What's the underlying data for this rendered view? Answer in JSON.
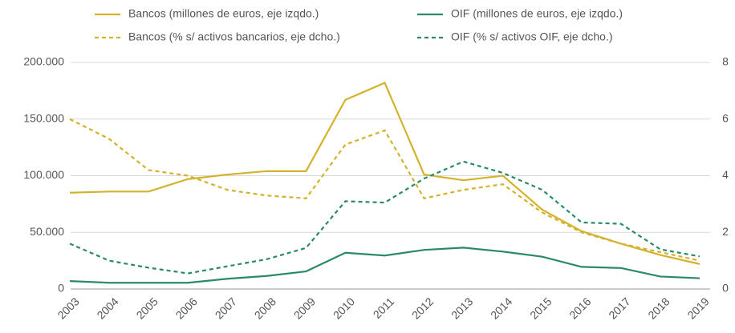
{
  "chart_data": {
    "type": "line",
    "categories": [
      "2003",
      "2004",
      "2005",
      "2006",
      "2007",
      "2008",
      "2009",
      "2010",
      "2011",
      "2012",
      "2013",
      "2014",
      "2015",
      "2016",
      "2017",
      "2018",
      "2019"
    ],
    "series": [
      {
        "name": "Bancos (millones de euros, eje izqdo.)",
        "color": "#d4b22c",
        "dashed": false,
        "values": [
          85000,
          86000,
          86000,
          97000,
          101000,
          104000,
          104000,
          167000,
          182000,
          101000,
          96000,
          100000,
          70000,
          51000,
          40000,
          30000,
          22000
        ]
      },
      {
        "name": "OIF (millones de euros, eje izqdo.)",
        "color": "#2a8a66",
        "dashed": false,
        "values": [
          7000,
          5500,
          5500,
          5500,
          9000,
          11500,
          15500,
          32000,
          29500,
          34500,
          36500,
          33000,
          28500,
          19500,
          18500,
          11000,
          9500
        ]
      },
      {
        "name": "Bancos (% s/ activos bancarios, eje dcho.)",
        "color": "#d4b22c",
        "dashed": true,
        "axis": "y2",
        "values": [
          6.0,
          5.3,
          4.2,
          4.0,
          3.5,
          3.3,
          3.2,
          5.1,
          5.6,
          3.2,
          3.5,
          3.7,
          2.7,
          2.0,
          1.6,
          1.3,
          1.0
        ]
      },
      {
        "name": "OIF (% s/ activos OIF, eje dcho.)",
        "color": "#2a8a66",
        "dashed": true,
        "axis": "y2",
        "values": [
          1.6,
          1.0,
          0.75,
          0.55,
          0.8,
          1.05,
          1.45,
          3.1,
          3.05,
          3.9,
          4.5,
          4.1,
          3.5,
          2.35,
          2.3,
          1.4,
          1.15
        ]
      }
    ],
    "ylim": [
      0,
      200000
    ],
    "yticks": [
      0,
      {
        "value": 50000,
        "label": "50.000"
      },
      {
        "value": 100000,
        "label": "100.000"
      },
      {
        "value": 150000,
        "label": "150.000"
      },
      {
        "value": 200000,
        "label": "200.000"
      }
    ],
    "y2lim": [
      0,
      8
    ],
    "y2ticks": [
      0,
      2,
      4,
      6,
      8
    ],
    "grid": true
  }
}
